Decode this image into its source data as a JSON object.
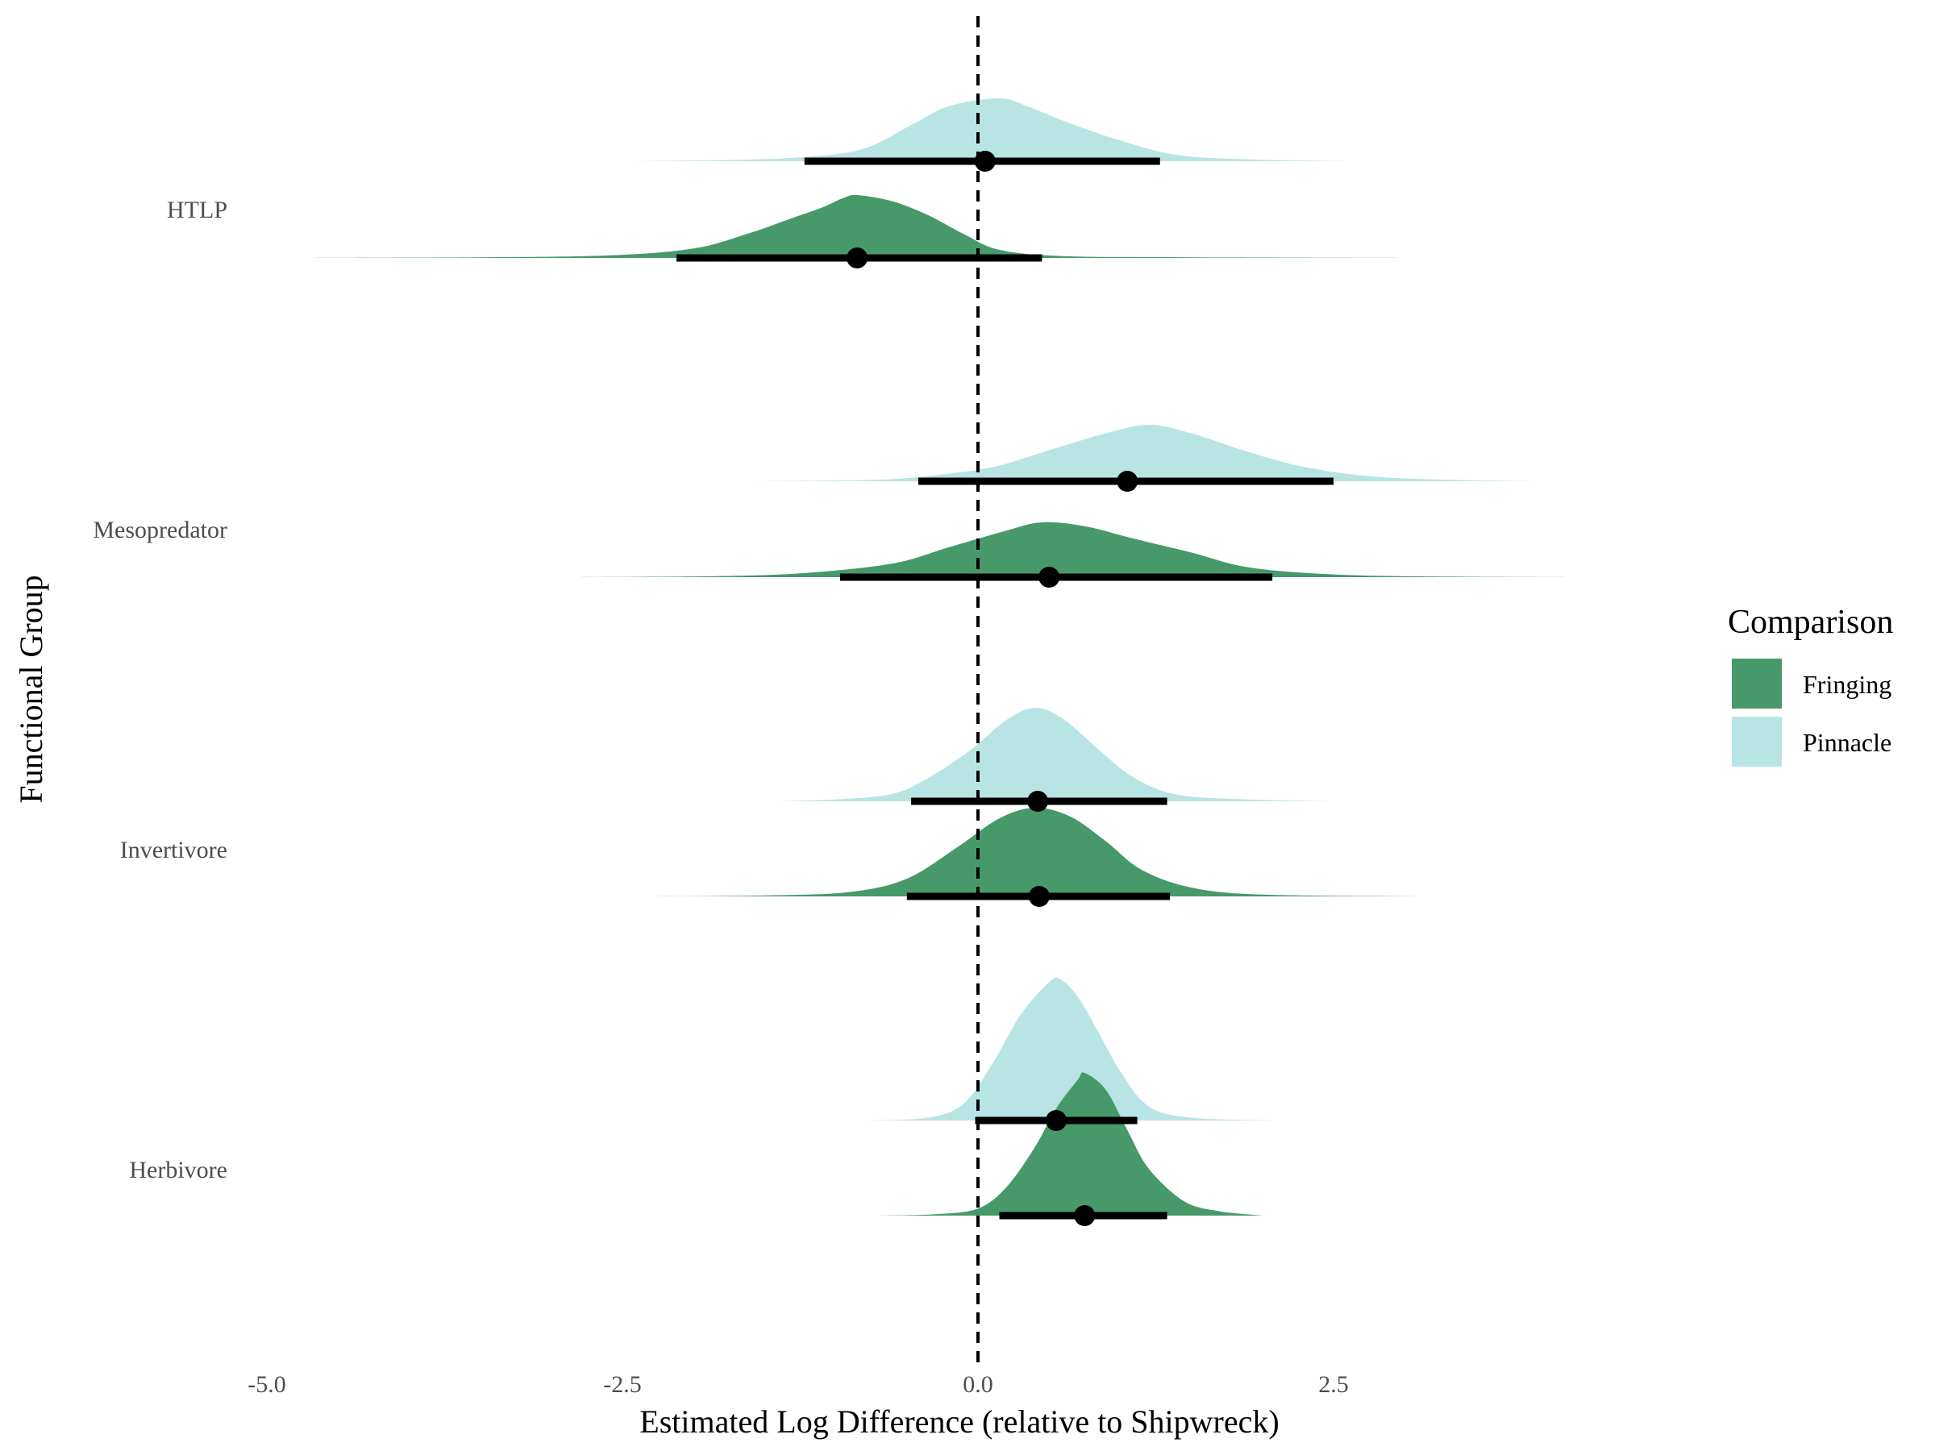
{
  "chart_data": {
    "type": "halfeye",
    "xlabel": "Estimated Log Difference (relative to Shipwreck)",
    "ylabel": "Functional Group",
    "xlim": [
      -5.0,
      3.5
    ],
    "x_ticks": [
      "-5.0",
      "-2.5",
      "0.0",
      "2.5"
    ],
    "x_tick_values": [
      -5.0,
      -2.5,
      0.0,
      2.5
    ],
    "reference_line_x": 0.0,
    "categories": [
      "HTLP",
      "Mesopredator",
      "Invertivore",
      "Herbivore"
    ],
    "legend": {
      "title": "Comparison",
      "position": "right",
      "items": [
        {
          "label": "Fringing",
          "color": "#47996a"
        },
        {
          "label": "Pinnacle",
          "color": "#b8e4e4"
        }
      ]
    },
    "series": [
      {
        "name": "Pinnacle",
        "color": "#b8e4e4",
        "groups": [
          {
            "group": "HTLP",
            "median": 0.05,
            "interval": [
              -1.22,
              1.28
            ],
            "range": [
              -2.45,
              2.6
            ],
            "density": [
              [
                -2.45,
                0.0
              ],
              [
                -1.7,
                0.02
              ],
              [
                -1.2,
                0.07
              ],
              [
                -0.8,
                0.2
              ],
              [
                -0.45,
                0.6
              ],
              [
                -0.2,
                0.88
              ],
              [
                0.15,
                1.0
              ],
              [
                0.35,
                0.87
              ],
              [
                0.65,
                0.6
              ],
              [
                1.0,
                0.33
              ],
              [
                1.4,
                0.1
              ],
              [
                1.9,
                0.03
              ],
              [
                2.6,
                0.0
              ]
            ]
          },
          {
            "group": "Mesopredator",
            "median": 1.05,
            "interval": [
              -0.42,
              2.5
            ],
            "range": [
              -1.7,
              4.0
            ],
            "density": [
              [
                -1.7,
                0.0
              ],
              [
                -0.8,
                0.02
              ],
              [
                -0.4,
                0.08
              ],
              [
                0.1,
                0.25
              ],
              [
                0.5,
                0.55
              ],
              [
                0.9,
                0.85
              ],
              [
                1.2,
                1.0
              ],
              [
                1.5,
                0.85
              ],
              [
                1.9,
                0.52
              ],
              [
                2.3,
                0.25
              ],
              [
                2.8,
                0.08
              ],
              [
                3.4,
                0.02
              ],
              [
                4.0,
                0.0
              ]
            ]
          },
          {
            "group": "Invertivore",
            "median": 0.42,
            "interval": [
              -0.47,
              1.33
            ],
            "range": [
              -1.4,
              2.5
            ],
            "density": [
              [
                -1.4,
                0.0
              ],
              [
                -1.0,
                0.02
              ],
              [
                -0.6,
                0.08
              ],
              [
                -0.35,
                0.25
              ],
              [
                -0.05,
                0.55
              ],
              [
                0.2,
                0.87
              ],
              [
                0.4,
                1.0
              ],
              [
                0.6,
                0.88
              ],
              [
                0.85,
                0.55
              ],
              [
                1.1,
                0.25
              ],
              [
                1.4,
                0.07
              ],
              [
                1.9,
                0.02
              ],
              [
                2.5,
                0.0
              ]
            ]
          },
          {
            "group": "Herbivore",
            "median": 0.55,
            "interval": [
              -0.02,
              1.12
            ],
            "range": [
              -0.8,
              2.1
            ],
            "density": [
              [
                -0.8,
                0.0
              ],
              [
                -0.35,
                0.02
              ],
              [
                -0.1,
                0.12
              ],
              [
                0.1,
                0.4
              ],
              [
                0.3,
                0.75
              ],
              [
                0.5,
                0.98
              ],
              [
                0.58,
                1.0
              ],
              [
                0.7,
                0.88
              ],
              [
                0.85,
                0.62
              ],
              [
                1.0,
                0.35
              ],
              [
                1.2,
                0.1
              ],
              [
                1.5,
                0.02
              ],
              [
                2.1,
                0.0
              ]
            ]
          }
        ]
      },
      {
        "name": "Fringing",
        "color": "#47996a",
        "groups": [
          {
            "group": "HTLP",
            "median": -0.85,
            "interval": [
              -2.12,
              0.45
            ],
            "range": [
              -4.8,
              3.0
            ],
            "density": [
              [
                -4.8,
                0.0
              ],
              [
                -3.5,
                0.01
              ],
              [
                -2.6,
                0.04
              ],
              [
                -2.0,
                0.15
              ],
              [
                -1.6,
                0.4
              ],
              [
                -1.35,
                0.6
              ],
              [
                -1.1,
                0.8
              ],
              [
                -0.95,
                0.95
              ],
              [
                -0.85,
                1.0
              ],
              [
                -0.6,
                0.9
              ],
              [
                -0.35,
                0.68
              ],
              [
                -0.1,
                0.38
              ],
              [
                0.15,
                0.13
              ],
              [
                0.6,
                0.03
              ],
              [
                1.5,
                0.01
              ],
              [
                3.0,
                0.0
              ]
            ]
          },
          {
            "group": "Mesopredator",
            "median": 0.5,
            "interval": [
              -0.97,
              2.07
            ],
            "range": [
              -2.9,
              4.4
            ],
            "density": [
              [
                -2.9,
                0.0
              ],
              [
                -1.8,
                0.02
              ],
              [
                -1.2,
                0.08
              ],
              [
                -0.6,
                0.25
              ],
              [
                -0.2,
                0.55
              ],
              [
                0.2,
                0.85
              ],
              [
                0.45,
                1.0
              ],
              [
                0.75,
                0.93
              ],
              [
                1.1,
                0.7
              ],
              [
                1.5,
                0.45
              ],
              [
                1.9,
                0.18
              ],
              [
                2.5,
                0.05
              ],
              [
                3.3,
                0.01
              ],
              [
                4.4,
                0.0
              ]
            ]
          },
          {
            "group": "Invertivore",
            "median": 0.43,
            "interval": [
              -0.5,
              1.35
            ],
            "range": [
              -2.4,
              3.1
            ],
            "density": [
              [
                -2.4,
                0.0
              ],
              [
                -1.5,
                0.01
              ],
              [
                -0.9,
                0.05
              ],
              [
                -0.5,
                0.2
              ],
              [
                -0.15,
                0.55
              ],
              [
                0.15,
                0.88
              ],
              [
                0.4,
                1.0
              ],
              [
                0.65,
                0.9
              ],
              [
                0.9,
                0.62
              ],
              [
                1.15,
                0.3
              ],
              [
                1.5,
                0.1
              ],
              [
                2.0,
                0.02
              ],
              [
                3.1,
                0.0
              ]
            ]
          },
          {
            "group": "Herbivore",
            "median": 0.75,
            "interval": [
              0.15,
              1.33
            ],
            "range": [
              -0.7,
              2.0
            ],
            "density": [
              [
                -0.7,
                0.0
              ],
              [
                -0.3,
                0.01
              ],
              [
                0.0,
                0.05
              ],
              [
                0.2,
                0.2
              ],
              [
                0.4,
                0.48
              ],
              [
                0.55,
                0.75
              ],
              [
                0.7,
                0.95
              ],
              [
                0.75,
                1.0
              ],
              [
                0.9,
                0.88
              ],
              [
                1.05,
                0.6
              ],
              [
                1.2,
                0.33
              ],
              [
                1.45,
                0.1
              ],
              [
                1.7,
                0.03
              ],
              [
                2.0,
                0.0
              ]
            ]
          }
        ]
      }
    ]
  }
}
